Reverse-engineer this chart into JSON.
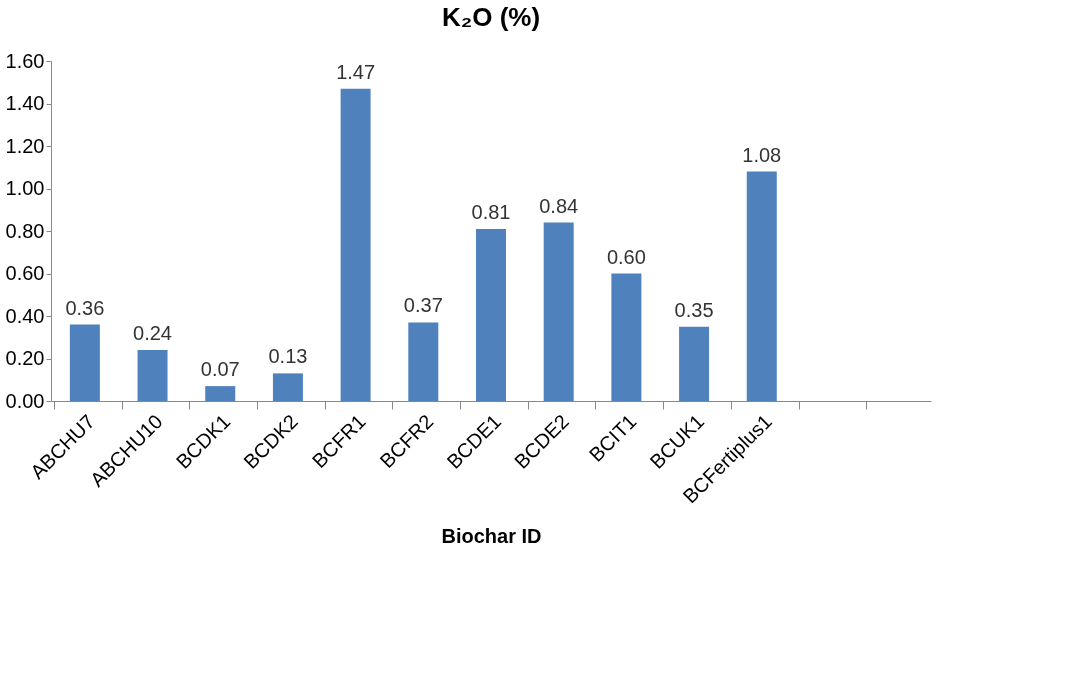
{
  "chart_data": {
    "type": "bar",
    "title": "K₂O (%)",
    "xlabel": "Biochar ID",
    "categories": [
      "ABCHU7",
      "ABCHU10",
      "BCDK1",
      "BCDK2",
      "BCFR1",
      "BCFR2",
      "BCDE1",
      "BCDE2",
      "BCIT1",
      "BCUK1",
      "BCFertiplus1",
      null,
      null
    ],
    "values": [
      0.36,
      0.24,
      0.07,
      0.13,
      1.47,
      0.37,
      0.81,
      0.84,
      0.6,
      0.35,
      1.08,
      null,
      null
    ],
    "value_labels": [
      "0.36",
      "0.24",
      "0.07",
      "0.13",
      "1.47",
      "0.37",
      "0.81",
      "0.84",
      "0.60",
      "0.35",
      "1.08",
      null,
      null
    ],
    "color": "#4f81bd",
    "ylim": [
      0,
      1.6
    ],
    "yticks": [
      {
        "value": 0,
        "label": "0.00"
      },
      {
        "value": 0.2,
        "label": "0.20"
      },
      {
        "value": 0.4,
        "label": "0.40"
      },
      {
        "value": 0.6,
        "label": "0.60"
      },
      {
        "value": 0.8,
        "label": "0.80"
      },
      {
        "value": 1.0,
        "label": "1.00"
      },
      {
        "value": 1.2,
        "label": "1.20"
      },
      {
        "value": 1.4,
        "label": "1.40"
      },
      {
        "value": 1.6,
        "label": "1.60"
      }
    ],
    "grid": false
  }
}
